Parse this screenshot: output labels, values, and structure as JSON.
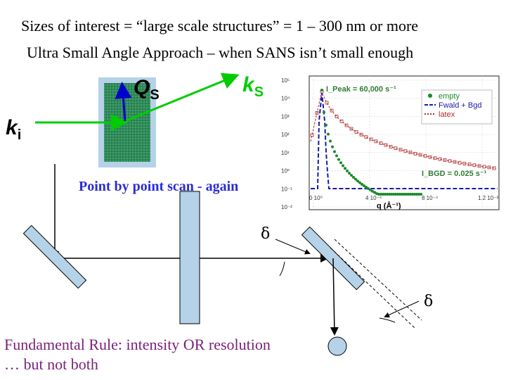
{
  "header": {
    "line1": "Sizes of interest = “large scale structures” = 1 – 300 nm or more",
    "line2": "Ultra Small Angle Approach – when SANS isn’t small enough"
  },
  "vectors": {
    "qs": "Q",
    "qs_sub": "S",
    "ks": "k",
    "ks_sub": "S",
    "ki": "k",
    "ki_sub": "i"
  },
  "scan_label": "Point by point scan - again",
  "delta_symbol": "δ",
  "rule": {
    "line1": "Fundamental Rule: intensity OR resolution",
    "line2": "… but not both"
  },
  "chart_data": {
    "type": "line",
    "xlabel": "q (Å⁻¹)",
    "x_ticks": [
      "0 10⁰",
      "4 10⁻⁴",
      "8 10⁻⁴",
      "1.2 10⁻³"
    ],
    "y_ticks": [
      "10⁵",
      "10⁴",
      "10³",
      "10²",
      "10¹",
      "10⁰",
      "10⁻¹",
      "10⁻²"
    ],
    "annotations": [
      "I_Peak = 60,000 s⁻¹",
      "I_BGD = 0.025 s⁻¹"
    ],
    "legend": [
      "empty",
      "Fwald + Bgd",
      "latex"
    ],
    "colors": {
      "empty": "#1a8a2a",
      "fwald": "#1a1aa6",
      "latex": "#b02a2a",
      "annotation": "#2e7d32"
    }
  }
}
